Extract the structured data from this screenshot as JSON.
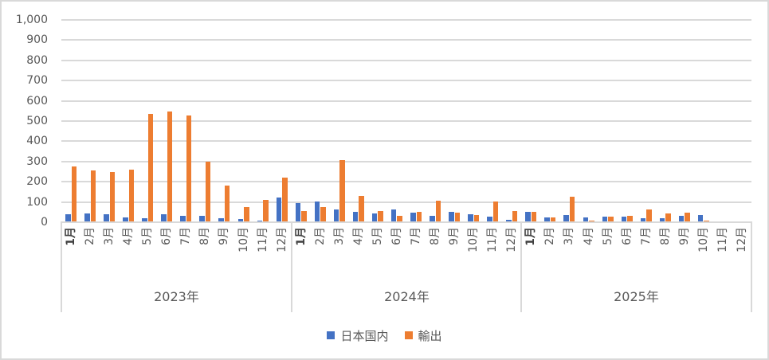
{
  "chart_data": {
    "type": "bar",
    "title": "",
    "xlabel": "",
    "ylabel": "",
    "ylim": [
      0,
      1000
    ],
    "ytick_step": 100,
    "yticks": [
      "1,000",
      "900",
      "800",
      "700",
      "600",
      "500",
      "400",
      "300",
      "200",
      "100",
      "0"
    ],
    "grid": true,
    "legend_position": "bottom",
    "month_labels": [
      "1月",
      "2月",
      "3月",
      "4月",
      "5月",
      "6月",
      "7月",
      "8月",
      "9月",
      "10月",
      "11月",
      "12月"
    ],
    "year_groups": [
      "2023年",
      "2024年",
      "2025年"
    ],
    "series": [
      {
        "name": "日本国内",
        "id": "domestic",
        "color": "#4472C4",
        "values": [
          38,
          45,
          38,
          22,
          18,
          40,
          32,
          32,
          21,
          16,
          9,
          121,
          94,
          103,
          64,
          53,
          44,
          63,
          48,
          30,
          53,
          39,
          27,
          10,
          52,
          23,
          34,
          23,
          28,
          28,
          19,
          18,
          32,
          35,
          null,
          null
        ]
      },
      {
        "name": "輸出",
        "id": "export",
        "color": "#ED7D31",
        "values": [
          275,
          257,
          250,
          258,
          535,
          548,
          528,
          300,
          183,
          75,
          110,
          219,
          54,
          76,
          306,
          130,
          57,
          33,
          50,
          108,
          49,
          35,
          104,
          57,
          53,
          23,
          125,
          7,
          27,
          30,
          64,
          44,
          49,
          8,
          null,
          null
        ]
      }
    ]
  }
}
